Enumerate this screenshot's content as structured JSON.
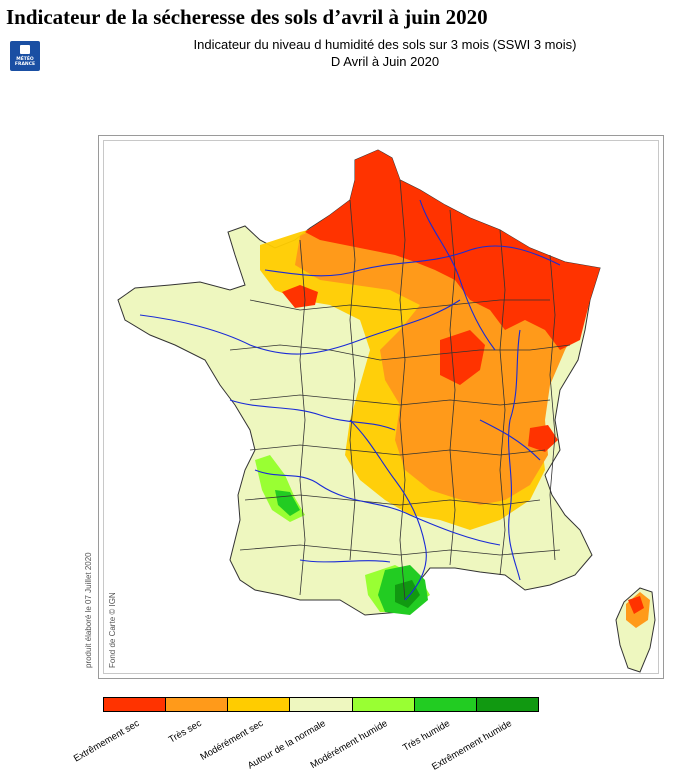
{
  "header": {
    "title": "Indicateur de la sécheresse des sols d’avril à juin 2020",
    "subtitle_line1": "Indicateur du niveau d humidité des sols sur 3 mois (SSWI 3 mois)",
    "subtitle_line2": "D Avril à Juin 2020"
  },
  "logo": {
    "text": "MÉTÉO\nFRANCE",
    "icon": "meteo-france-logo"
  },
  "credits": {
    "produced": "produit élaboré le 07 Juillet 2020",
    "basemap": "Fond de Carte © IGN"
  },
  "legend": {
    "classes": [
      {
        "label": "Extrêmement sec",
        "color": "#ff3300"
      },
      {
        "label": "Très sec",
        "color": "#ff9a1a"
      },
      {
        "label": "Modérément sec",
        "color": "#ffcc00"
      },
      {
        "label": "Autour de la normale",
        "color": "#eef7bf"
      },
      {
        "label": "Modérément humide",
        "color": "#99ff33"
      },
      {
        "label": "Très humide",
        "color": "#22cc22"
      },
      {
        "label": "Extrêmement humide",
        "color": "#119911"
      }
    ]
  },
  "map": {
    "river_color": "#1a2bd6",
    "border_color": "#333333"
  }
}
